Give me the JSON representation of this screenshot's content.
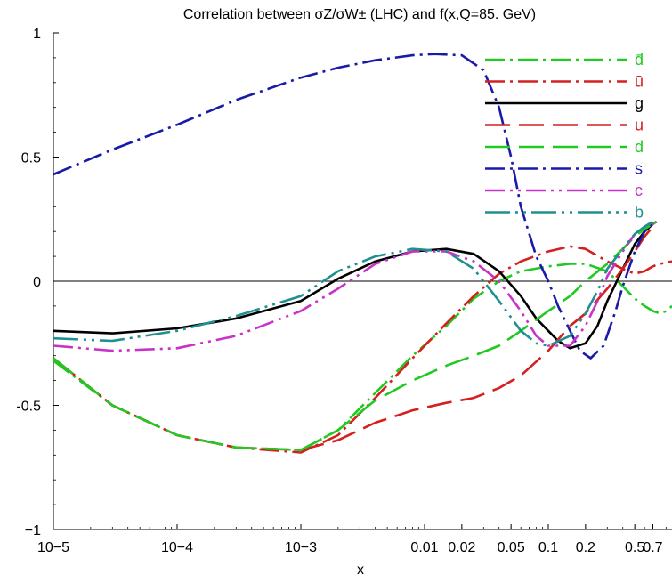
{
  "chart_data": {
    "type": "line",
    "title": "Correlation between σZ/σW± (LHC) and f(x,Q=85. GeV)",
    "xlabel": "x",
    "ylabel": "",
    "xscale": "log",
    "xlim": [
      1e-05,
      1.0
    ],
    "ylim": [
      -1,
      1
    ],
    "x_ticks": [
      {
        "value": 1e-05,
        "label": "10−5"
      },
      {
        "value": 0.0001,
        "label": "10−4"
      },
      {
        "value": 0.001,
        "label": "10−3"
      },
      {
        "value": 0.01,
        "label": "0.01"
      },
      {
        "value": 0.02,
        "label": "0.02"
      },
      {
        "value": 0.05,
        "label": "0.05"
      },
      {
        "value": 0.1,
        "label": "0.1"
      },
      {
        "value": 0.2,
        "label": "0.2"
      },
      {
        "value": 0.5,
        "label": "0.5"
      },
      {
        "value": 0.7,
        "label": "0.7"
      }
    ],
    "y_ticks": [
      {
        "value": 1,
        "label": "1"
      },
      {
        "value": 0.5,
        "label": "0.5"
      },
      {
        "value": 0,
        "label": "0"
      },
      {
        "value": -0.5,
        "label": "-0.5"
      },
      {
        "value": -1,
        "label": "−1"
      }
    ],
    "zero_line": true,
    "grid": false,
    "legend_position": "top-right",
    "series": [
      {
        "name": "d̄",
        "color": "#22c922",
        "dash": "22,6,3,6",
        "points": [
          [
            1e-05,
            -0.32
          ],
          [
            3e-05,
            -0.5
          ],
          [
            0.0001,
            -0.62
          ],
          [
            0.0003,
            -0.67
          ],
          [
            0.001,
            -0.68
          ],
          [
            0.002,
            -0.6
          ],
          [
            0.004,
            -0.45
          ],
          [
            0.008,
            -0.3
          ],
          [
            0.015,
            -0.18
          ],
          [
            0.025,
            -0.07
          ],
          [
            0.04,
            0.0
          ],
          [
            0.06,
            0.04
          ],
          [
            0.1,
            0.06
          ],
          [
            0.15,
            0.07
          ],
          [
            0.2,
            0.07
          ],
          [
            0.3,
            0.04
          ],
          [
            0.4,
            -0.02
          ],
          [
            0.5,
            -0.07
          ],
          [
            0.6,
            -0.1
          ],
          [
            0.7,
            -0.12
          ],
          [
            0.8,
            -0.13
          ],
          [
            0.9,
            -0.12
          ],
          [
            1.0,
            -0.1
          ]
        ]
      },
      {
        "name": "ū",
        "color": "#d42020",
        "dash": "22,6,3,6",
        "points": [
          [
            1e-05,
            -0.31
          ],
          [
            3e-05,
            -0.5
          ],
          [
            0.0001,
            -0.62
          ],
          [
            0.0003,
            -0.67
          ],
          [
            0.001,
            -0.69
          ],
          [
            0.002,
            -0.62
          ],
          [
            0.004,
            -0.47
          ],
          [
            0.008,
            -0.31
          ],
          [
            0.015,
            -0.17
          ],
          [
            0.025,
            -0.06
          ],
          [
            0.04,
            0.03
          ],
          [
            0.06,
            0.08
          ],
          [
            0.1,
            0.12
          ],
          [
            0.15,
            0.14
          ],
          [
            0.2,
            0.13
          ],
          [
            0.3,
            0.08
          ],
          [
            0.4,
            0.05
          ],
          [
            0.5,
            0.03
          ],
          [
            0.6,
            0.04
          ],
          [
            0.7,
            0.06
          ],
          [
            0.8,
            0.07
          ],
          [
            1.0,
            0.08
          ]
        ]
      },
      {
        "name": "g",
        "color": "#000000",
        "dash": "",
        "points": [
          [
            1e-05,
            -0.2
          ],
          [
            3e-05,
            -0.21
          ],
          [
            0.0001,
            -0.19
          ],
          [
            0.0003,
            -0.15
          ],
          [
            0.001,
            -0.08
          ],
          [
            0.002,
            0.01
          ],
          [
            0.004,
            0.08
          ],
          [
            0.008,
            0.12
          ],
          [
            0.015,
            0.13
          ],
          [
            0.025,
            0.11
          ],
          [
            0.04,
            0.04
          ],
          [
            0.06,
            -0.06
          ],
          [
            0.08,
            -0.15
          ],
          [
            0.1,
            -0.2
          ],
          [
            0.12,
            -0.24
          ],
          [
            0.15,
            -0.27
          ],
          [
            0.2,
            -0.25
          ],
          [
            0.25,
            -0.18
          ],
          [
            0.3,
            -0.08
          ],
          [
            0.4,
            0.05
          ],
          [
            0.5,
            0.15
          ],
          [
            0.6,
            0.2
          ],
          [
            0.7,
            0.23
          ],
          [
            0.75,
            0.24
          ]
        ]
      },
      {
        "name": "u",
        "color": "#d42020",
        "dash": "28,10",
        "points": [
          [
            1e-05,
            -0.31
          ],
          [
            3e-05,
            -0.5
          ],
          [
            0.0001,
            -0.62
          ],
          [
            0.0003,
            -0.67
          ],
          [
            0.001,
            -0.68
          ],
          [
            0.002,
            -0.64
          ],
          [
            0.004,
            -0.57
          ],
          [
            0.008,
            -0.52
          ],
          [
            0.015,
            -0.49
          ],
          [
            0.025,
            -0.47
          ],
          [
            0.04,
            -0.43
          ],
          [
            0.06,
            -0.38
          ],
          [
            0.1,
            -0.28
          ],
          [
            0.15,
            -0.18
          ],
          [
            0.2,
            -0.13
          ],
          [
            0.3,
            -0.03
          ],
          [
            0.4,
            0.05
          ],
          [
            0.5,
            0.12
          ],
          [
            0.6,
            0.18
          ],
          [
            0.7,
            0.22
          ],
          [
            0.75,
            0.24
          ]
        ]
      },
      {
        "name": "d",
        "color": "#22c922",
        "dash": "28,10",
        "points": [
          [
            1e-05,
            -0.31
          ],
          [
            3e-05,
            -0.5
          ],
          [
            0.0001,
            -0.62
          ],
          [
            0.0003,
            -0.67
          ],
          [
            0.001,
            -0.68
          ],
          [
            0.002,
            -0.6
          ],
          [
            0.004,
            -0.48
          ],
          [
            0.008,
            -0.4
          ],
          [
            0.015,
            -0.34
          ],
          [
            0.025,
            -0.3
          ],
          [
            0.04,
            -0.26
          ],
          [
            0.06,
            -0.2
          ],
          [
            0.1,
            -0.12
          ],
          [
            0.15,
            -0.06
          ],
          [
            0.2,
            0.0
          ],
          [
            0.3,
            0.07
          ],
          [
            0.4,
            0.13
          ],
          [
            0.5,
            0.18
          ],
          [
            0.6,
            0.21
          ],
          [
            0.7,
            0.23
          ],
          [
            0.75,
            0.24
          ]
        ]
      },
      {
        "name": "s",
        "color": "#1a1aa8",
        "dash": "22,6,3,6",
        "points": [
          [
            1e-05,
            0.43
          ],
          [
            3e-05,
            0.53
          ],
          [
            0.0001,
            0.63
          ],
          [
            0.0003,
            0.73
          ],
          [
            0.001,
            0.82
          ],
          [
            0.002,
            0.86
          ],
          [
            0.004,
            0.89
          ],
          [
            0.008,
            0.91
          ],
          [
            0.012,
            0.915
          ],
          [
            0.02,
            0.91
          ],
          [
            0.03,
            0.85
          ],
          [
            0.04,
            0.7
          ],
          [
            0.05,
            0.5
          ],
          [
            0.06,
            0.3
          ],
          [
            0.08,
            0.1
          ],
          [
            0.1,
            0.0
          ],
          [
            0.12,
            -0.1
          ],
          [
            0.15,
            -0.2
          ],
          [
            0.18,
            -0.28
          ],
          [
            0.22,
            -0.31
          ],
          [
            0.28,
            -0.26
          ],
          [
            0.35,
            -0.12
          ],
          [
            0.4,
            -0.02
          ],
          [
            0.5,
            0.12
          ],
          [
            0.6,
            0.2
          ],
          [
            0.7,
            0.23
          ],
          [
            0.75,
            0.24
          ]
        ]
      },
      {
        "name": "c",
        "color": "#c832c8",
        "dash": "22,6,3,6,3,6",
        "points": [
          [
            1e-05,
            -0.26
          ],
          [
            3e-05,
            -0.28
          ],
          [
            0.0001,
            -0.27
          ],
          [
            0.0003,
            -0.22
          ],
          [
            0.001,
            -0.12
          ],
          [
            0.002,
            -0.03
          ],
          [
            0.004,
            0.07
          ],
          [
            0.008,
            0.12
          ],
          [
            0.015,
            0.12
          ],
          [
            0.025,
            0.08
          ],
          [
            0.04,
            0.0
          ],
          [
            0.06,
            -0.12
          ],
          [
            0.08,
            -0.22
          ],
          [
            0.1,
            -0.26
          ],
          [
            0.15,
            -0.26
          ],
          [
            0.2,
            -0.18
          ],
          [
            0.25,
            -0.08
          ],
          [
            0.3,
            0.02
          ],
          [
            0.4,
            0.12
          ],
          [
            0.5,
            0.19
          ],
          [
            0.6,
            0.22
          ],
          [
            0.7,
            0.23
          ],
          [
            0.75,
            0.24
          ]
        ]
      },
      {
        "name": "b",
        "color": "#1e9090",
        "dash": "28,6,3,6,3,6",
        "points": [
          [
            1e-05,
            -0.23
          ],
          [
            3e-05,
            -0.24
          ],
          [
            0.0001,
            -0.2
          ],
          [
            0.0003,
            -0.14
          ],
          [
            0.001,
            -0.06
          ],
          [
            0.002,
            0.04
          ],
          [
            0.004,
            0.1
          ],
          [
            0.008,
            0.13
          ],
          [
            0.015,
            0.12
          ],
          [
            0.025,
            0.05
          ],
          [
            0.04,
            -0.08
          ],
          [
            0.06,
            -0.2
          ],
          [
            0.08,
            -0.25
          ],
          [
            0.1,
            -0.26
          ],
          [
            0.15,
            -0.22
          ],
          [
            0.2,
            -0.13
          ],
          [
            0.25,
            -0.04
          ],
          [
            0.3,
            0.05
          ],
          [
            0.4,
            0.13
          ],
          [
            0.5,
            0.19
          ],
          [
            0.6,
            0.22
          ],
          [
            0.7,
            0.24
          ],
          [
            0.75,
            0.24
          ]
        ]
      }
    ]
  }
}
